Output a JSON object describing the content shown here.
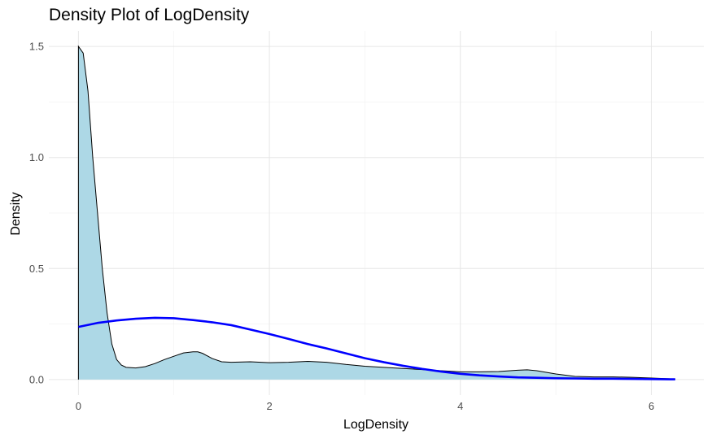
{
  "chart_data": {
    "type": "area",
    "title": "Density Plot of LogDensity",
    "xlabel": "LogDensity",
    "ylabel": "Density",
    "xlim": [
      -0.31,
      6.55
    ],
    "ylim": [
      -0.07,
      1.57
    ],
    "x_ticks": [
      0,
      2,
      4,
      6
    ],
    "x_tick_labels": [
      "0",
      "2",
      "4",
      "6"
    ],
    "y_ticks": [
      0.0,
      0.5,
      1.0,
      1.5
    ],
    "y_tick_labels": [
      "0.0",
      "0.5",
      "1.0",
      "1.5"
    ],
    "grid": true,
    "series": [
      {
        "kind": "area",
        "fill": "#add8e6",
        "stroke": "#000000",
        "x": [
          0,
          0.05,
          0.1,
          0.15,
          0.2,
          0.25,
          0.3,
          0.35,
          0.4,
          0.45,
          0.5,
          0.6,
          0.7,
          0.8,
          0.9,
          1.0,
          1.1,
          1.2,
          1.25,
          1.3,
          1.4,
          1.5,
          1.6,
          1.8,
          2.0,
          2.2,
          2.4,
          2.6,
          2.8,
          3.0,
          3.2,
          3.4,
          3.6,
          3.8,
          4.0,
          4.2,
          4.4,
          4.6,
          4.7,
          4.8,
          5.0,
          5.2,
          5.4,
          5.6,
          5.8,
          6.0,
          6.2,
          6.25
        ],
        "y": [
          1.5,
          1.47,
          1.3,
          1.0,
          0.75,
          0.5,
          0.3,
          0.16,
          0.09,
          0.065,
          0.055,
          0.052,
          0.058,
          0.072,
          0.09,
          0.105,
          0.12,
          0.125,
          0.125,
          0.118,
          0.095,
          0.08,
          0.078,
          0.08,
          0.076,
          0.078,
          0.082,
          0.078,
          0.068,
          0.06,
          0.055,
          0.05,
          0.045,
          0.04,
          0.035,
          0.035,
          0.036,
          0.042,
          0.044,
          0.04,
          0.025,
          0.014,
          0.012,
          0.012,
          0.01,
          0.007,
          0.003,
          0.002
        ]
      },
      {
        "kind": "line",
        "color": "#0000ff",
        "x": [
          0,
          0.2,
          0.4,
          0.6,
          0.8,
          1.0,
          1.2,
          1.4,
          1.6,
          1.8,
          2.0,
          2.2,
          2.4,
          2.6,
          2.8,
          3.0,
          3.2,
          3.4,
          3.6,
          3.8,
          4.0,
          4.2,
          4.4,
          4.6,
          4.8,
          5.0,
          5.2,
          5.4,
          5.6,
          5.8,
          6.0,
          6.2,
          6.25
        ],
        "y": [
          0.237,
          0.255,
          0.266,
          0.274,
          0.278,
          0.276,
          0.268,
          0.258,
          0.245,
          0.225,
          0.205,
          0.183,
          0.16,
          0.14,
          0.118,
          0.096,
          0.078,
          0.062,
          0.048,
          0.036,
          0.026,
          0.019,
          0.014,
          0.01,
          0.008,
          0.006,
          0.005,
          0.004,
          0.004,
          0.003,
          0.002,
          0.001,
          0.001
        ]
      }
    ]
  }
}
